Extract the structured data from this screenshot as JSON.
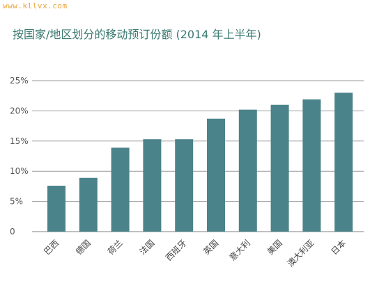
{
  "watermark": "www.kllvx.com",
  "chart_data": {
    "type": "bar",
    "title": "按国家/地区划分的移动预订份额 (2014 年上半年)",
    "categories": [
      "巴西",
      "德国",
      "荷兰",
      "法国",
      "西班牙",
      "英国",
      "意大利",
      "美国",
      "澳大利亚",
      "日本"
    ],
    "values": [
      7.6,
      8.9,
      13.9,
      15.3,
      15.3,
      18.7,
      20.2,
      21.0,
      21.9,
      23.0
    ],
    "ylim": [
      0,
      25
    ],
    "yticks": [
      0,
      5,
      10,
      15,
      20,
      25
    ],
    "ytick_labels": [
      "0",
      "5%",
      "10%",
      "15%",
      "20%",
      "25%"
    ],
    "grid": true,
    "bar_color": "#4b838a",
    "grid_color": "#9a9a9a"
  }
}
